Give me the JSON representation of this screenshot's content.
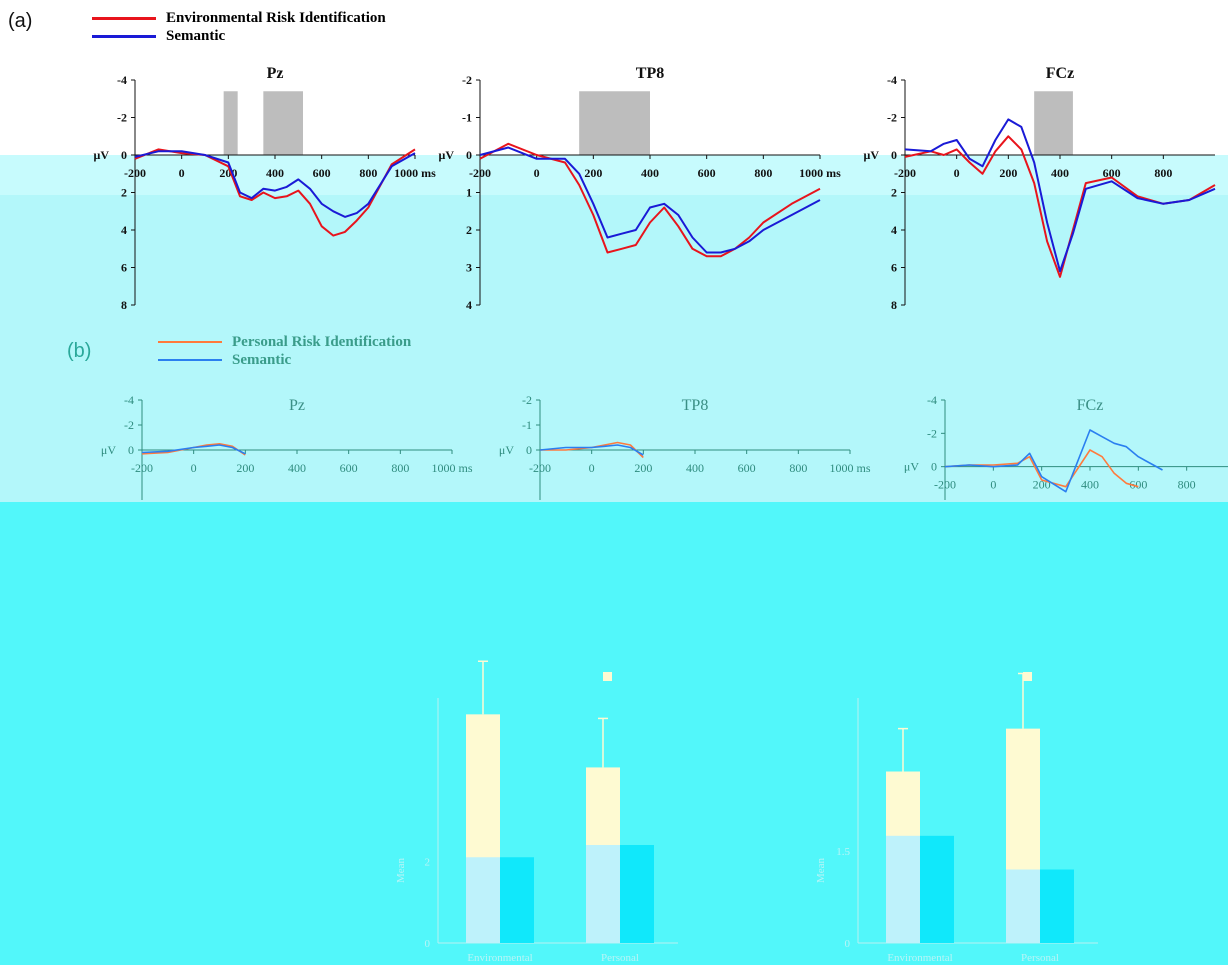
{
  "panel_a": {
    "label": "(a)",
    "legend": [
      {
        "name": "Environmental Risk Identification",
        "color": "#e8141c"
      },
      {
        "name": "Semantic",
        "color": "#1a1ad6"
      }
    ]
  },
  "panel_b": {
    "label": "(b)",
    "legend": [
      {
        "name": "Personal Risk Identification",
        "color": "#ff7a3c"
      },
      {
        "name": "Semantic",
        "color": "#2a7ff0"
      }
    ]
  },
  "colors": {
    "band_light": "#bff7fa",
    "band_mid": "#b0f8fb",
    "band_strong": "#55f8fa",
    "shade": "#bdbdbd"
  },
  "chart_data": [
    {
      "type": "line",
      "title": "Pz",
      "panel": "a",
      "xlim": [
        -200,
        1000
      ],
      "ylim": [
        8,
        -4
      ],
      "xticks": [
        "-200",
        "0",
        "200",
        "400",
        "600",
        "800",
        "1000 ms"
      ],
      "yticks": [
        "-4",
        "-2",
        "0",
        "2",
        "4",
        "6",
        "8"
      ],
      "yunit": "μV",
      "shaded": [
        [
          180,
          240
        ],
        [
          350,
          520
        ]
      ],
      "series": [
        {
          "name": "Environmental Risk Identification",
          "color": "#e8141c",
          "x": [
            -200,
            -100,
            0,
            100,
            200,
            250,
            300,
            350,
            400,
            450,
            500,
            550,
            600,
            650,
            700,
            750,
            800,
            900,
            1000
          ],
          "y": [
            0.2,
            -0.3,
            -0.1,
            0,
            0.6,
            2.2,
            2.4,
            2.0,
            2.3,
            2.2,
            1.9,
            2.6,
            3.8,
            4.3,
            4.1,
            3.5,
            2.8,
            0.5,
            -0.3
          ]
        },
        {
          "name": "Semantic",
          "color": "#1a1ad6",
          "x": [
            -200,
            -100,
            0,
            100,
            200,
            250,
            300,
            350,
            400,
            450,
            500,
            550,
            600,
            650,
            700,
            750,
            800,
            900,
            1000
          ],
          "y": [
            0.1,
            -0.2,
            -0.2,
            0,
            0.4,
            2.0,
            2.3,
            1.8,
            1.9,
            1.7,
            1.3,
            1.8,
            2.6,
            3.0,
            3.3,
            3.1,
            2.6,
            0.6,
            -0.1
          ]
        }
      ]
    },
    {
      "type": "line",
      "title": "TP8",
      "panel": "a",
      "xlim": [
        -200,
        1000
      ],
      "ylim": [
        4,
        -2
      ],
      "xticks": [
        "-200",
        "0",
        "200",
        "400",
        "600",
        "800",
        "1000 ms"
      ],
      "yticks": [
        "-2",
        "-1",
        "0",
        "1",
        "2",
        "3",
        "4"
      ],
      "yunit": "μV",
      "shaded": [
        [
          150,
          400
        ]
      ],
      "series": [
        {
          "name": "Environmental Risk Identification",
          "color": "#e8141c",
          "x": [
            -200,
            -100,
            0,
            100,
            150,
            200,
            250,
            300,
            350,
            400,
            450,
            500,
            550,
            600,
            650,
            700,
            750,
            800,
            900,
            1000
          ],
          "y": [
            0.1,
            -0.3,
            0,
            0.2,
            0.8,
            1.6,
            2.6,
            2.5,
            2.4,
            1.8,
            1.4,
            1.9,
            2.5,
            2.7,
            2.7,
            2.5,
            2.2,
            1.8,
            1.3,
            0.9
          ]
        },
        {
          "name": "Semantic",
          "color": "#1a1ad6",
          "x": [
            -200,
            -100,
            0,
            100,
            150,
            200,
            250,
            300,
            350,
            400,
            450,
            500,
            550,
            600,
            650,
            700,
            750,
            800,
            900,
            1000
          ],
          "y": [
            0,
            -0.2,
            0.1,
            0.1,
            0.5,
            1.3,
            2.2,
            2.1,
            2.0,
            1.4,
            1.3,
            1.6,
            2.2,
            2.6,
            2.6,
            2.5,
            2.3,
            2.0,
            1.6,
            1.2
          ]
        }
      ]
    },
    {
      "type": "line",
      "title": "FCz",
      "panel": "a",
      "xlim": [
        -200,
        1000
      ],
      "ylim": [
        8,
        -4
      ],
      "xticks": [
        "-200",
        "0",
        "200",
        "400",
        "600",
        "800"
      ],
      "yticks": [
        "-4",
        "-2",
        "0",
        "2",
        "4",
        "6",
        "8"
      ],
      "yunit": "μV",
      "shaded": [
        [
          300,
          450
        ]
      ],
      "series": [
        {
          "name": "Environmental Risk Identification",
          "color": "#e8141c",
          "x": [
            -200,
            -100,
            -50,
            0,
            50,
            100,
            150,
            200,
            250,
            300,
            350,
            400,
            450,
            500,
            600,
            700,
            800,
            900,
            1000
          ],
          "y": [
            0.1,
            -0.2,
            0,
            -0.3,
            0.4,
            1.0,
            -0.2,
            -1.0,
            -0.3,
            1.5,
            4.6,
            6.5,
            4.0,
            1.5,
            1.2,
            2.2,
            2.6,
            2.4,
            1.6
          ]
        },
        {
          "name": "Semantic",
          "color": "#1a1ad6",
          "x": [
            -200,
            -100,
            -50,
            0,
            50,
            100,
            150,
            200,
            250,
            300,
            350,
            400,
            450,
            500,
            600,
            700,
            800,
            900,
            1000
          ],
          "y": [
            -0.3,
            -0.2,
            -0.6,
            -0.8,
            0.2,
            0.6,
            -0.8,
            -1.9,
            -1.5,
            0.4,
            3.6,
            6.2,
            4.2,
            1.8,
            1.4,
            2.3,
            2.6,
            2.4,
            1.8
          ]
        }
      ]
    },
    {
      "type": "line",
      "title": "Pz",
      "panel": "b",
      "xlim": [
        -200,
        1000
      ],
      "ylim": [
        4,
        -4
      ],
      "xticks": [
        "-200",
        "0",
        "200",
        "400",
        "600",
        "800",
        "1000 ms"
      ],
      "yticks": [
        "-4",
        "-2",
        "0"
      ],
      "yunit": "μV",
      "series": [
        {
          "name": "Personal Risk Identification",
          "color": "#ff7a3c",
          "x": [
            -200,
            -100,
            0,
            50,
            100,
            150,
            200
          ],
          "y": [
            0.3,
            0.2,
            -0.2,
            -0.4,
            -0.5,
            -0.3,
            0.4
          ]
        },
        {
          "name": "Semantic",
          "color": "#2a7ff0",
          "x": [
            -200,
            -100,
            0,
            50,
            100,
            150,
            200
          ],
          "y": [
            0.2,
            0.1,
            -0.2,
            -0.3,
            -0.4,
            -0.2,
            0.3
          ]
        }
      ]
    },
    {
      "type": "line",
      "title": "TP8",
      "panel": "b",
      "xlim": [
        -200,
        1000
      ],
      "ylim": [
        2,
        -2
      ],
      "xticks": [
        "-200",
        "0",
        "200",
        "400",
        "600",
        "800",
        "1000 ms"
      ],
      "yticks": [
        "-2",
        "-1",
        "0"
      ],
      "yunit": "μV",
      "series": [
        {
          "name": "Personal Risk Identification",
          "color": "#ff7a3c",
          "x": [
            -200,
            -100,
            0,
            50,
            100,
            150,
            200
          ],
          "y": [
            0,
            0,
            -0.1,
            -0.2,
            -0.3,
            -0.2,
            0.3
          ]
        },
        {
          "name": "Semantic",
          "color": "#2a7ff0",
          "x": [
            -200,
            -100,
            0,
            50,
            100,
            150,
            200
          ],
          "y": [
            0,
            -0.1,
            -0.1,
            -0.15,
            -0.2,
            -0.1,
            0.2
          ]
        }
      ]
    },
    {
      "type": "line",
      "title": "FCz",
      "panel": "b",
      "xlim": [
        -200,
        1000
      ],
      "ylim": [
        2,
        -4
      ],
      "xticks": [
        "-200",
        "0",
        "200",
        "400",
        "600",
        "800"
      ],
      "yticks": [
        "-4",
        "-2",
        "0"
      ],
      "yunit": "μV",
      "series": [
        {
          "name": "Personal Risk Identification",
          "color": "#ff7a3c",
          "x": [
            -200,
            -100,
            0,
            100,
            150,
            200,
            300,
            400,
            450,
            500,
            550,
            600
          ],
          "y": [
            0,
            -0.1,
            -0.1,
            -0.2,
            -0.6,
            0.8,
            1.2,
            -1.0,
            -0.6,
            0.4,
            1.0,
            1.2
          ]
        },
        {
          "name": "Semantic",
          "color": "#2a7ff0",
          "x": [
            -200,
            -100,
            0,
            100,
            150,
            200,
            300,
            400,
            450,
            500,
            550,
            600,
            700
          ],
          "y": [
            0,
            -0.1,
            0,
            -0.1,
            -0.8,
            0.6,
            1.5,
            -2.2,
            -1.8,
            -1.4,
            -1.2,
            -0.6,
            0.2
          ]
        }
      ]
    },
    {
      "type": "bar",
      "panel": "c",
      "ylabel": "Mean",
      "yticks": [
        "0",
        "2"
      ],
      "ylim": [
        0,
        6
      ],
      "categories": [
        "Environmental",
        "Personal"
      ],
      "values": [
        [
          5.6,
          2.1
        ],
        [
          4.3,
          2.4
        ]
      ],
      "errors": [
        1.3,
        1.2
      ]
    },
    {
      "type": "bar",
      "panel": "d",
      "ylabel": "Mean",
      "yticks": [
        "0",
        "1.5"
      ],
      "ylim": [
        0,
        4
      ],
      "categories": [
        "Environmental",
        "Personal"
      ],
      "values": [
        [
          2.8,
          1.75
        ],
        [
          3.5,
          1.2
        ]
      ],
      "errors": [
        0.7,
        0.9
      ]
    }
  ]
}
